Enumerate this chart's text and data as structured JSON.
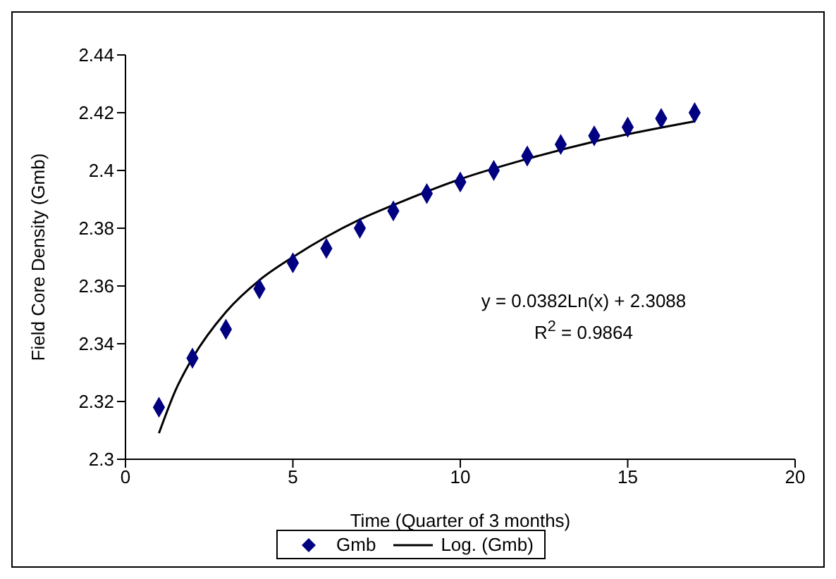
{
  "chart_data": {
    "type": "scatter",
    "xlabel": "Time (Quarter of 3 months)",
    "ylabel": "Field Core Density (Gmb)",
    "xlim": [
      0,
      20
    ],
    "xticks": [
      0,
      5,
      10,
      15,
      20
    ],
    "ylim": [
      2.3,
      2.44
    ],
    "yticks": [
      2.3,
      2.32,
      2.34,
      2.36,
      2.38,
      2.4,
      2.42,
      2.44
    ],
    "grid": false,
    "legend": "bottom",
    "annotations": [
      "y = 0.0382Ln(x) + 2.3088",
      "R$^{2}$ = 0.9864"
    ],
    "series": [
      {
        "name": "Gmb",
        "color": "#000080",
        "marker": "diamond",
        "x": [
          1,
          2,
          3,
          4,
          5,
          6,
          7,
          8,
          9,
          10,
          11,
          12,
          13,
          14,
          15,
          16,
          17
        ],
        "values": [
          2.318,
          2.335,
          2.345,
          2.359,
          2.368,
          2.373,
          2.38,
          2.386,
          2.392,
          2.396,
          2.4,
          2.405,
          2.409,
          2.412,
          2.415,
          2.418,
          2.42
        ]
      },
      {
        "name": "Log. (Gmb)",
        "type": "line",
        "color": "#000000",
        "marker": "none",
        "line_style": "solid",
        "x": [
          1,
          1.5,
          2,
          3,
          4,
          5,
          6,
          7,
          8,
          10,
          12,
          14,
          17
        ],
        "values": [
          2.309,
          2.324,
          2.335,
          2.351,
          2.362,
          2.37,
          2.377,
          2.383,
          2.388,
          2.397,
          2.404,
          2.41,
          2.417
        ]
      }
    ]
  }
}
